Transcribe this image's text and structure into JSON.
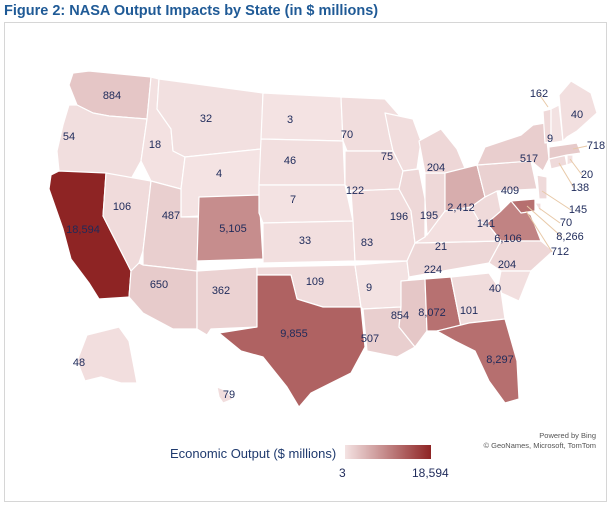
{
  "title": "Figure 2: NASA Output Impacts by State (in $ millions)",
  "map": {
    "type": "choropleth",
    "region": "United States",
    "color_low": "#f4e3e3",
    "color_high": "#8e2424",
    "states": {
      "WA": "884",
      "OR": "54",
      "CA": "18,594",
      "NV": "106",
      "ID": "18",
      "MT": "32",
      "WY": "4",
      "UT": "487",
      "CO": "5,105",
      "AZ": "650",
      "NM": "362",
      "ND": "3",
      "SD": "46",
      "NE": "7",
      "KS": "33",
      "OK": "109",
      "TX": "9,855",
      "MN": "70",
      "IA": "122",
      "MO": "83",
      "AR": "9",
      "LA": "507",
      "WI": "75",
      "IL": "196",
      "MS": "854",
      "AL": "8,072",
      "TN": "224",
      "KY": "21",
      "IN": "195",
      "MI": "204",
      "OH": "2,412",
      "WV": "141",
      "VA": "6,106",
      "NC": "204",
      "SC": "40",
      "GA": "101",
      "FL": "8,297",
      "PA": "409",
      "NY": "517",
      "VT": "162",
      "NH": "9",
      "ME": "40",
      "MA": "718",
      "RI": "20",
      "CT": "138",
      "NJ": "145",
      "DE": "70",
      "MD": "8,266",
      "DC": "712",
      "AK": "48",
      "HI": "79"
    }
  },
  "attribution": {
    "line1": "Powered by Bing",
    "line2": "© GeoNames, Microsoft, TomTom"
  },
  "legend": {
    "title": "Economic Output ($ millions)",
    "min_label": "3",
    "max_label": "18,594",
    "min_value": 3,
    "max_value": 18594
  }
}
